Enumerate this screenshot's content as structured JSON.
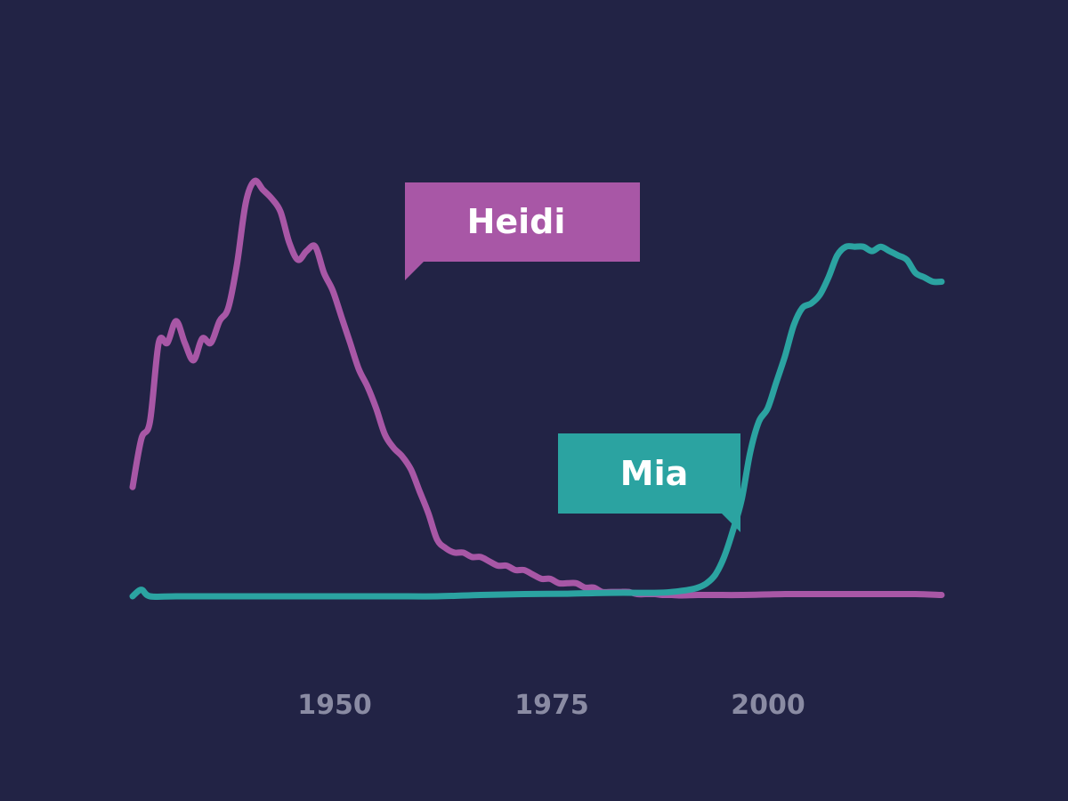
{
  "chart_data": {
    "type": "line",
    "title": "",
    "xlabel": "",
    "ylabel": "",
    "xlim": [
      1930,
      2023
    ],
    "ylim": [
      0,
      100
    ],
    "grid": false,
    "x_ticks": [
      "1950",
      "1975",
      "2000"
    ],
    "series": [
      {
        "name": "Heidi",
        "color": "#a857a6",
        "x": [
          1930,
          1931,
          1932,
          1933,
          1934,
          1935,
          1936,
          1937,
          1938,
          1939,
          1940,
          1941,
          1942,
          1943,
          1944,
          1945,
          1946,
          1947,
          1948,
          1949,
          1950,
          1951,
          1952,
          1953,
          1954,
          1955,
          1956,
          1957,
          1958,
          1959,
          1960,
          1961,
          1962,
          1963,
          1964,
          1965,
          1966,
          1967,
          1968,
          1969,
          1970,
          1971,
          1972,
          1973,
          1974,
          1975,
          1976,
          1977,
          1978,
          1979,
          1980,
          1981,
          1982,
          1983,
          1984,
          1985,
          1986,
          1987,
          1988,
          1989,
          1990,
          1991,
          1992,
          1993,
          1995,
          1997,
          2000,
          2005,
          2010,
          2015,
          2020,
          2023
        ],
        "values": [
          25,
          36,
          40,
          58,
          58,
          63,
          58,
          54,
          59,
          58,
          63,
          66,
          76,
          90,
          95,
          93,
          91,
          88,
          81,
          77,
          79,
          80,
          74,
          70,
          64,
          58,
          52,
          48,
          43,
          37,
          34,
          32,
          29,
          24,
          19,
          13,
          11,
          10,
          10,
          9,
          9,
          8,
          7,
          7,
          6,
          6,
          5,
          4,
          4,
          3,
          3,
          3,
          2,
          2,
          1,
          1,
          1,
          1,
          0.5,
          0.5,
          0.5,
          0.3,
          0.3,
          0.2,
          0.3,
          0.3,
          0.3,
          0.5,
          0.5,
          0.5,
          0.5,
          0.3
        ]
      },
      {
        "name": "Mia",
        "color": "#2ba3a1",
        "x": [
          1930,
          1931,
          1932,
          1935,
          1940,
          1945,
          1950,
          1955,
          1960,
          1965,
          1970,
          1975,
          1980,
          1985,
          1990,
          1992,
          1994,
          1995,
          1996,
          1997,
          1998,
          1999,
          2000,
          2001,
          2002,
          2003,
          2004,
          2005,
          2006,
          2007,
          2008,
          2009,
          2010,
          2011,
          2012,
          2013,
          2014,
          2015,
          2016,
          2017,
          2018,
          2019,
          2020,
          2021,
          2022,
          2023
        ],
        "values": [
          0,
          1.5,
          0,
          0,
          0,
          0,
          0,
          0,
          0,
          0,
          0.3,
          0.5,
          0.6,
          0.8,
          0.8,
          1,
          1.5,
          2,
          3,
          5,
          9,
          15,
          22,
          33,
          40,
          43,
          49,
          55,
          62,
          66,
          67,
          69,
          73,
          78,
          80,
          80,
          80,
          79,
          80,
          79,
          78,
          77,
          74,
          73,
          72,
          72
        ]
      }
    ],
    "annotations": [
      {
        "label": "Heidi",
        "series": "Heidi",
        "color": "#a857a6"
      },
      {
        "label": "Mia",
        "series": "Mia",
        "color": "#2ba3a1"
      }
    ]
  }
}
